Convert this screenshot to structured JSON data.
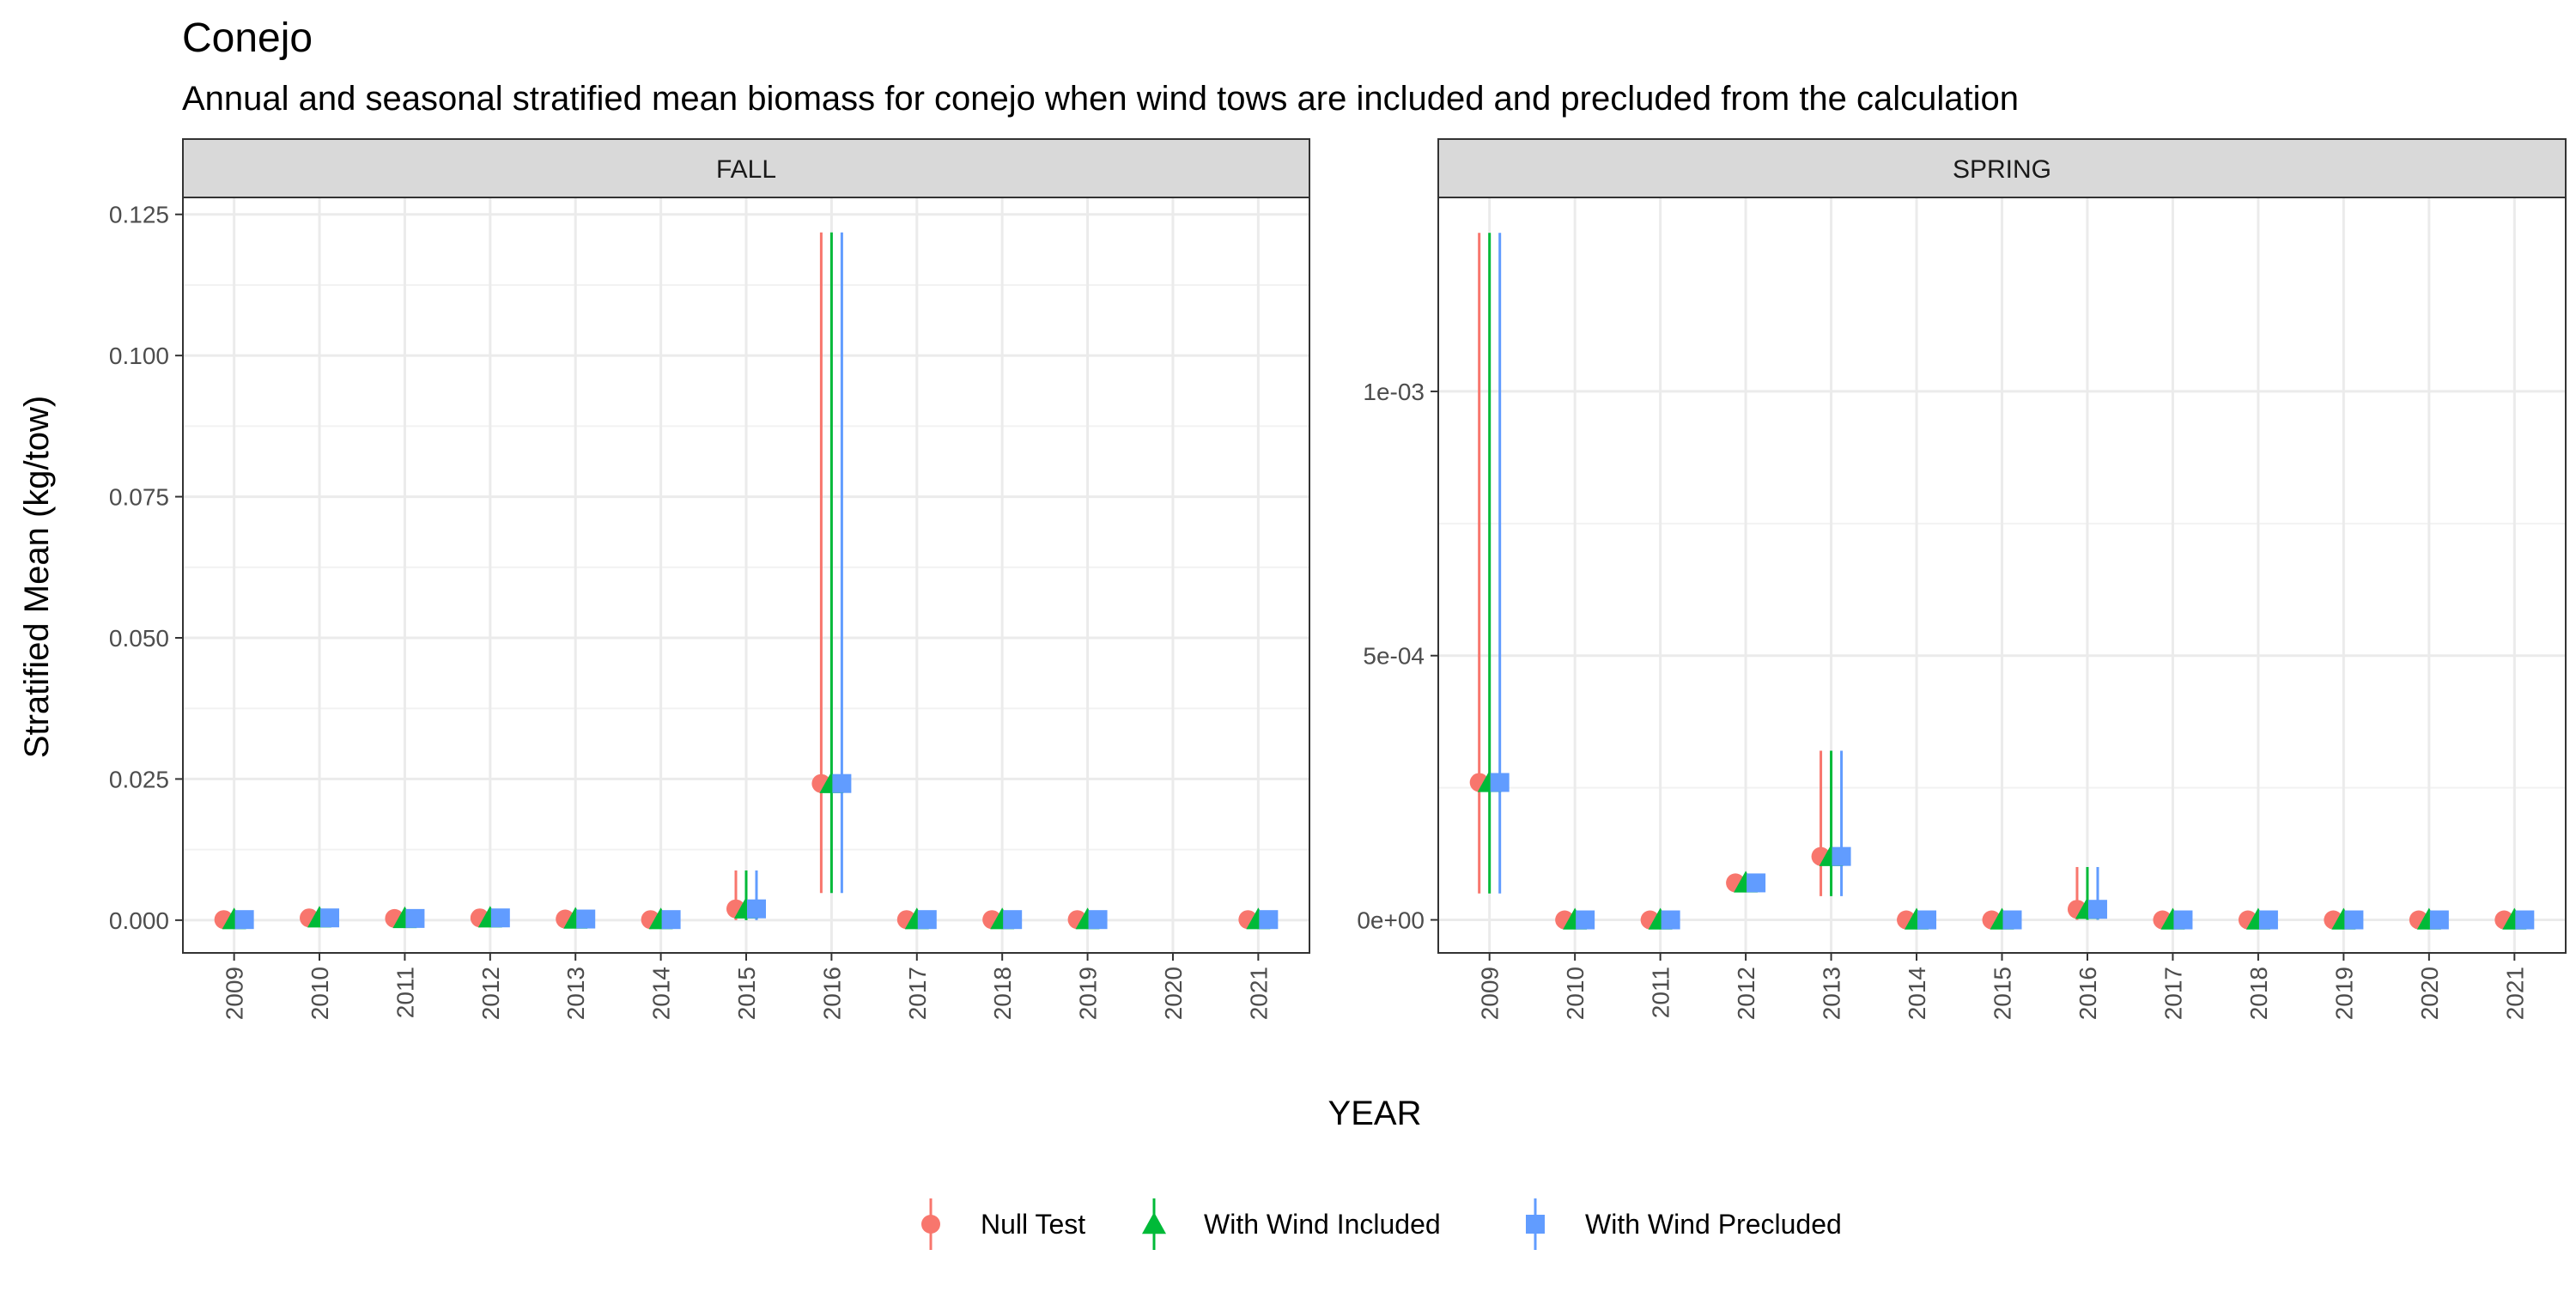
{
  "title": "Conejo",
  "subtitle": "Annual and seasonal stratified mean biomass for conejo when wind tows are included and precluded from the calculation",
  "colors": {
    "Null Test": "#F8766D",
    "With Wind Included": "#00BA38",
    "With Wind Precluded": "#619CFF"
  },
  "chart_data": {
    "type": "scatter",
    "xlabel": "YEAR",
    "ylabel": "Stratified Mean (kg/tow)",
    "legend_position": "bottom",
    "grid": true,
    "series_names": [
      "Null Test",
      "With Wind Included",
      "With Wind Precluded"
    ],
    "series_shapes": [
      "circle",
      "triangle",
      "square"
    ],
    "panels": [
      {
        "label": "FALL",
        "years": [
          "2009",
          "2010",
          "2011",
          "2012",
          "2013",
          "2014",
          "2015",
          "2016",
          "2017",
          "2018",
          "2019",
          "2020",
          "2021"
        ],
        "ylim": [
          -0.0058,
          0.128
        ],
        "yticks": [
          0,
          0.025,
          0.05,
          0.075,
          0.1,
          0.125
        ],
        "ytick_labels": [
          "0.000",
          "0.025",
          "0.050",
          "0.075",
          "0.100",
          "0.125"
        ],
        "points": [
          {
            "year": "2009",
            "mean": 0.0001,
            "low": null,
            "high": null
          },
          {
            "year": "2010",
            "mean": 0.0004,
            "low": null,
            "high": null
          },
          {
            "year": "2011",
            "mean": 0.0003,
            "low": null,
            "high": null
          },
          {
            "year": "2012",
            "mean": 0.0004,
            "low": null,
            "high": null
          },
          {
            "year": "2013",
            "mean": 0.0002,
            "low": null,
            "high": null
          },
          {
            "year": "2014",
            "mean": 0.0001,
            "low": null,
            "high": null
          },
          {
            "year": "2015",
            "mean": 0.002,
            "low": 0.0,
            "high": 0.0088
          },
          {
            "year": "2016",
            "mean": 0.0242,
            "low": 0.0048,
            "high": 0.1218
          },
          {
            "year": "2017",
            "mean": 0.0001,
            "low": null,
            "high": null
          },
          {
            "year": "2018",
            "mean": 0.0001,
            "low": null,
            "high": null
          },
          {
            "year": "2019",
            "mean": 0.0001,
            "low": null,
            "high": null
          },
          {
            "year": "2021",
            "mean": 0.0001,
            "low": null,
            "high": null
          }
        ]
      },
      {
        "label": "SPRING",
        "years": [
          "2009",
          "2010",
          "2011",
          "2012",
          "2013",
          "2014",
          "2015",
          "2016",
          "2017",
          "2018",
          "2019",
          "2020",
          "2021"
        ],
        "ylim": [
          -6.25e-05,
          0.001367
        ],
        "yticks": [
          0,
          0.0005,
          0.001
        ],
        "ytick_labels": [
          "0e+00",
          "5e-04",
          "1e-03"
        ],
        "points": [
          {
            "year": "2009",
            "mean": 0.00026,
            "low": 5e-05,
            "high": 0.0013
          },
          {
            "year": "2010",
            "mean": 0.0,
            "low": null,
            "high": null
          },
          {
            "year": "2011",
            "mean": 0.0,
            "low": null,
            "high": null
          },
          {
            "year": "2012",
            "mean": 7e-05,
            "low": null,
            "high": null
          },
          {
            "year": "2013",
            "mean": 0.00012,
            "low": 4.5e-05,
            "high": 0.00032
          },
          {
            "year": "2014",
            "mean": 0.0,
            "low": null,
            "high": null
          },
          {
            "year": "2015",
            "mean": 0.0,
            "low": null,
            "high": null
          },
          {
            "year": "2016",
            "mean": 2e-05,
            "low": 0.0,
            "high": 0.0001
          },
          {
            "year": "2017",
            "mean": 0.0,
            "low": null,
            "high": null
          },
          {
            "year": "2018",
            "mean": 0.0,
            "low": null,
            "high": null
          },
          {
            "year": "2019",
            "mean": 0.0,
            "low": null,
            "high": null
          },
          {
            "year": "2020",
            "mean": 0.0,
            "low": null,
            "high": null
          },
          {
            "year": "2021",
            "mean": 0.0,
            "low": null,
            "high": null
          }
        ]
      }
    ]
  }
}
